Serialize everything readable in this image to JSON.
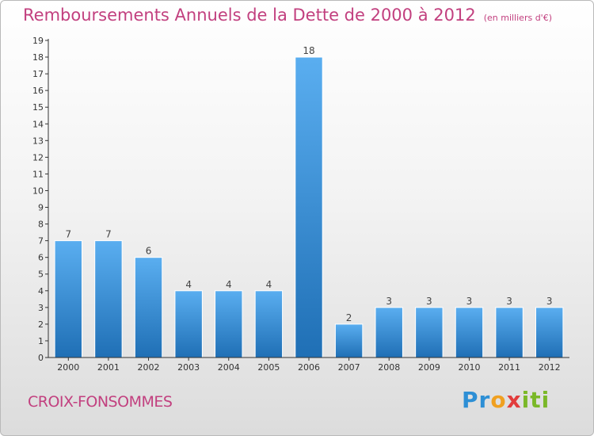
{
  "header": {
    "title": "Remboursements Annuels de la Dette de 2000 à 2012",
    "unit": "(en milliers d'€)"
  },
  "footer": {
    "commune": "CROIX-FONSOMMES",
    "brand": "Proxiti"
  },
  "colors": {
    "title": "#c2407f",
    "bar_light": "#5aaef0",
    "bar_dark": "#1f6fb5"
  },
  "chart_data": {
    "type": "bar",
    "title": "Remboursements Annuels de la Dette de 2000 à 2012",
    "subtitle": "(en milliers d'€)",
    "xlabel": "",
    "ylabel": "",
    "categories": [
      "2000",
      "2001",
      "2002",
      "2003",
      "2004",
      "2005",
      "2006",
      "2007",
      "2008",
      "2009",
      "2010",
      "2011",
      "2012"
    ],
    "values": [
      7,
      7,
      6,
      4,
      4,
      4,
      18,
      2,
      3,
      3,
      3,
      3,
      3
    ],
    "ylim": [
      0,
      19
    ],
    "yticks": [
      0,
      1,
      2,
      3,
      4,
      5,
      6,
      7,
      8,
      9,
      10,
      11,
      12,
      13,
      14,
      15,
      16,
      17,
      18,
      19
    ],
    "grid": false,
    "legend": "none"
  }
}
